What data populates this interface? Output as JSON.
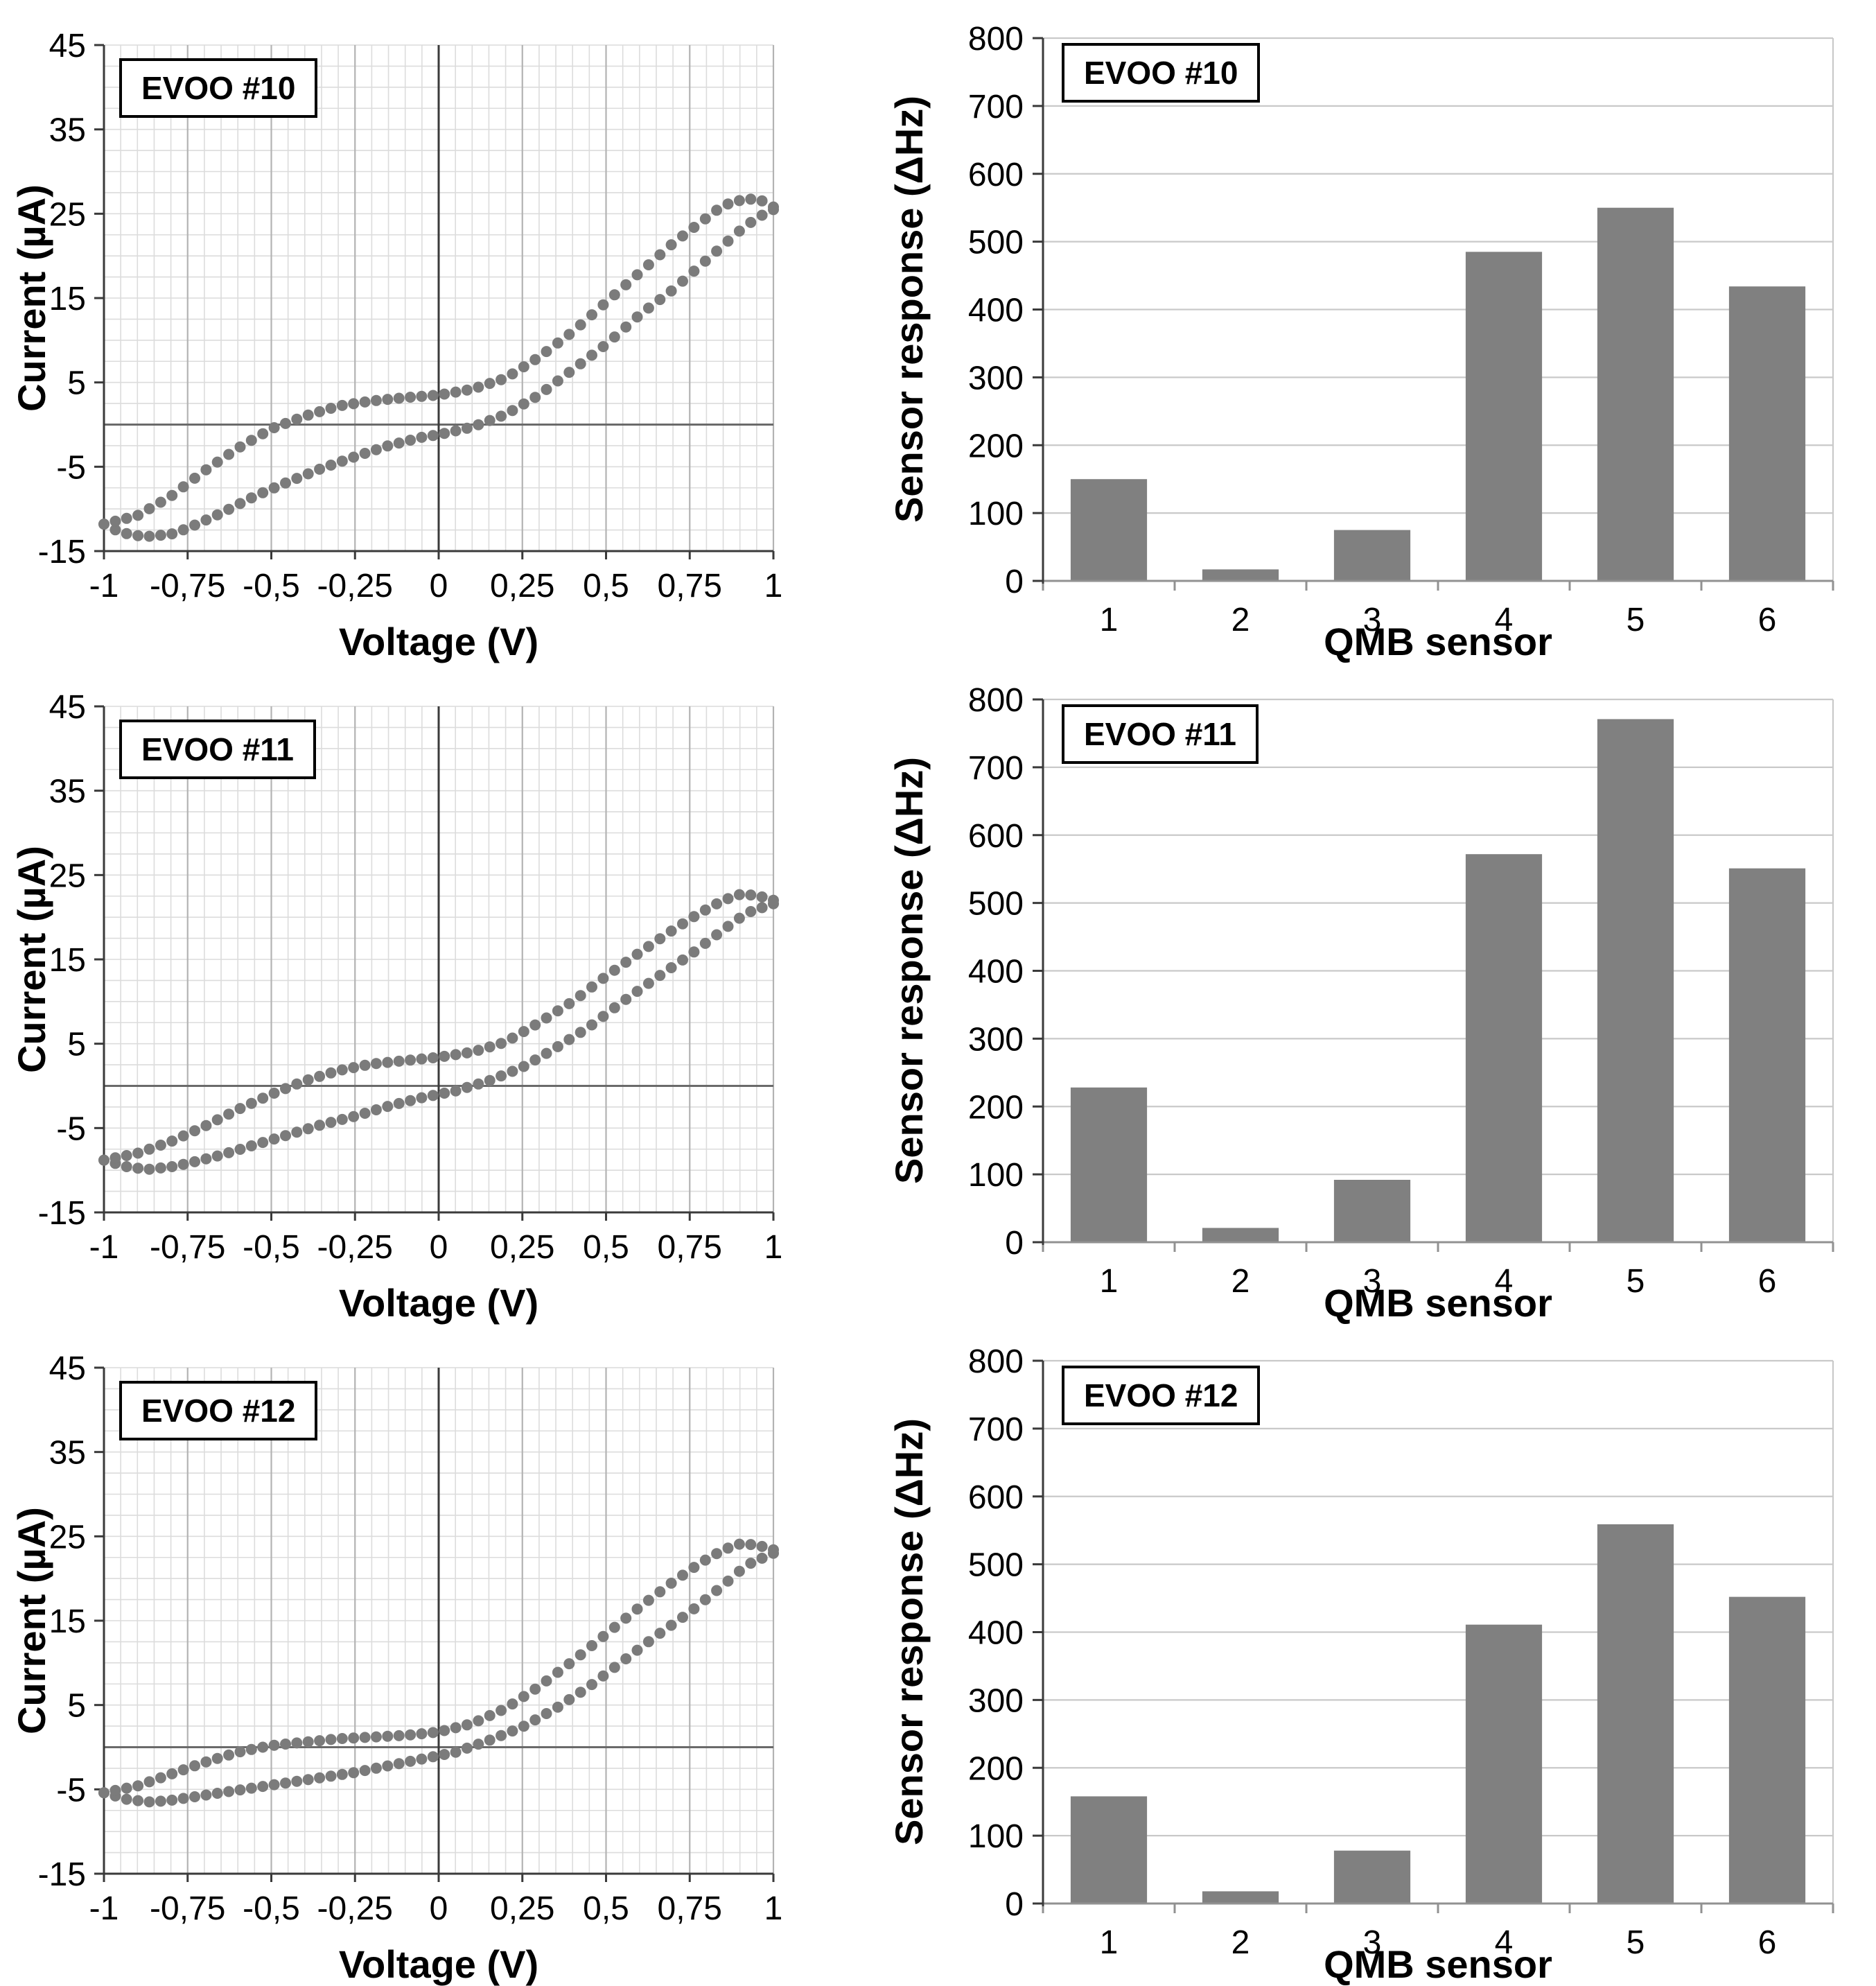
{
  "colors": {
    "series": "#7b7b7b",
    "bar_fill": "#808080",
    "grid_minor": "#dcdcdc",
    "grid_major": "#b3b3b3",
    "grid_bar": "#c9c9c9",
    "axis": "#3a3a3a",
    "zero_line": "#6a6a6a",
    "bar_baseline": "#919191",
    "text": "#000000"
  },
  "chart_data": [
    {
      "kind": "cv",
      "title": "EVOO #10",
      "xlabel": "Voltage (V)",
      "ylabel": "Current (µA)",
      "xlim": [
        -1,
        1
      ],
      "ylim": [
        -15,
        45
      ],
      "minor_x_step": 0.05,
      "minor_y_step": 2.5,
      "major_x_step": 0.25,
      "point_step": 0.034,
      "x_ticks": [
        -1,
        -0.75,
        -0.5,
        -0.25,
        0,
        0.25,
        0.5,
        0.75,
        1
      ],
      "x_tick_labels": [
        "-1",
        "-0,75",
        "-0,5",
        "-0,25",
        "0",
        "0,25",
        "0,5",
        "0,75",
        "1"
      ],
      "y_ticks": [
        45,
        35,
        25,
        15,
        5,
        -5,
        -15
      ],
      "y_tick_labels": [
        "45",
        "35",
        "25",
        "15",
        "5",
        "-5",
        "-15"
      ],
      "branches": {
        "forward": [
          [
            -1.0,
            -11.8
          ],
          [
            -0.95,
            -12.8
          ],
          [
            -0.88,
            -13.3
          ],
          [
            -0.8,
            -13.0
          ],
          [
            -0.75,
            -12.3
          ],
          [
            -0.65,
            -10.5
          ],
          [
            -0.55,
            -8.5
          ],
          [
            -0.45,
            -6.8
          ],
          [
            -0.35,
            -5.2
          ],
          [
            -0.25,
            -3.8
          ],
          [
            -0.15,
            -2.5
          ],
          [
            -0.05,
            -1.5
          ],
          [
            0.0,
            -1.2
          ],
          [
            0.1,
            -0.3
          ],
          [
            0.2,
            1.2
          ],
          [
            0.3,
            3.5
          ],
          [
            0.4,
            6.5
          ],
          [
            0.5,
            9.5
          ],
          [
            0.6,
            13.0
          ],
          [
            0.7,
            16.0
          ],
          [
            0.8,
            19.5
          ],
          [
            0.9,
            23.0
          ],
          [
            0.95,
            24.5
          ],
          [
            1.0,
            25.5
          ]
        ],
        "reverse": [
          [
            1.0,
            25.8
          ],
          [
            0.97,
            26.5
          ],
          [
            0.92,
            26.8
          ],
          [
            0.85,
            26.0
          ],
          [
            0.8,
            24.5
          ],
          [
            0.7,
            21.5
          ],
          [
            0.6,
            18.0
          ],
          [
            0.5,
            14.5
          ],
          [
            0.4,
            11.0
          ],
          [
            0.3,
            8.0
          ],
          [
            0.2,
            5.5
          ],
          [
            0.1,
            4.2
          ],
          [
            0.0,
            3.5
          ],
          [
            -0.1,
            3.2
          ],
          [
            -0.2,
            2.8
          ],
          [
            -0.3,
            2.2
          ],
          [
            -0.4,
            1.0
          ],
          [
            -0.5,
            -0.5
          ],
          [
            -0.6,
            -2.8
          ],
          [
            -0.7,
            -5.5
          ],
          [
            -0.8,
            -8.5
          ],
          [
            -0.9,
            -10.8
          ],
          [
            -1.0,
            -11.8
          ]
        ]
      }
    },
    {
      "kind": "bar",
      "title": "EVOO #10",
      "xlabel": "QMB sensor",
      "ylabel": "Sensor response (ΔHz)",
      "categories": [
        "1",
        "2",
        "3",
        "4",
        "5",
        "6"
      ],
      "values": [
        150,
        17,
        75,
        485,
        550,
        434
      ],
      "ylim": [
        0,
        800
      ],
      "y_ticks": [
        0,
        100,
        200,
        300,
        400,
        500,
        600,
        700,
        800
      ],
      "y_tick_labels": [
        "0",
        "100",
        "200",
        "300",
        "400",
        "500",
        "600",
        "700",
        "800"
      ]
    },
    {
      "kind": "cv",
      "title": "EVOO #11",
      "xlabel": "Voltage (V)",
      "ylabel": "Current (µA)",
      "xlim": [
        -1,
        1
      ],
      "ylim": [
        -15,
        45
      ],
      "minor_x_step": 0.05,
      "minor_y_step": 2.5,
      "major_x_step": 0.25,
      "point_step": 0.034,
      "x_ticks": [
        -1,
        -0.75,
        -0.5,
        -0.25,
        0,
        0.25,
        0.5,
        0.75,
        1
      ],
      "x_tick_labels": [
        "-1",
        "-0,75",
        "-0,5",
        "-0,25",
        "0",
        "0,25",
        "0,5",
        "0,75",
        "1"
      ],
      "y_ticks": [
        45,
        35,
        25,
        15,
        5,
        -5,
        -15
      ],
      "y_tick_labels": [
        "45",
        "35",
        "25",
        "15",
        "5",
        "-5",
        "-15"
      ],
      "branches": {
        "forward": [
          [
            -1.0,
            -8.8
          ],
          [
            -0.93,
            -9.6
          ],
          [
            -0.87,
            -9.9
          ],
          [
            -0.8,
            -9.6
          ],
          [
            -0.75,
            -9.2
          ],
          [
            -0.65,
            -8.2
          ],
          [
            -0.55,
            -7.0
          ],
          [
            -0.45,
            -5.8
          ],
          [
            -0.35,
            -4.6
          ],
          [
            -0.25,
            -3.6
          ],
          [
            -0.15,
            -2.4
          ],
          [
            -0.05,
            -1.4
          ],
          [
            0.05,
            -0.6
          ],
          [
            0.15,
            0.6
          ],
          [
            0.25,
            2.2
          ],
          [
            0.35,
            4.5
          ],
          [
            0.45,
            7.0
          ],
          [
            0.55,
            10.0
          ],
          [
            0.65,
            12.8
          ],
          [
            0.75,
            15.5
          ],
          [
            0.85,
            18.5
          ],
          [
            0.92,
            20.5
          ],
          [
            1.0,
            21.6
          ]
        ],
        "reverse": [
          [
            1.0,
            22.0
          ],
          [
            0.95,
            22.6
          ],
          [
            0.9,
            22.7
          ],
          [
            0.85,
            22.0
          ],
          [
            0.78,
            20.5
          ],
          [
            0.7,
            18.5
          ],
          [
            0.6,
            15.8
          ],
          [
            0.5,
            13.0
          ],
          [
            0.4,
            10.0
          ],
          [
            0.3,
            7.5
          ],
          [
            0.2,
            5.2
          ],
          [
            0.1,
            4.0
          ],
          [
            0.0,
            3.4
          ],
          [
            -0.1,
            3.0
          ],
          [
            -0.2,
            2.6
          ],
          [
            -0.3,
            1.8
          ],
          [
            -0.4,
            0.6
          ],
          [
            -0.5,
            -1.0
          ],
          [
            -0.6,
            -2.8
          ],
          [
            -0.7,
            -4.8
          ],
          [
            -0.8,
            -6.6
          ],
          [
            -0.9,
            -8.0
          ],
          [
            -1.0,
            -8.8
          ]
        ]
      }
    },
    {
      "kind": "bar",
      "title": "EVOO #11",
      "xlabel": "QMB sensor",
      "ylabel": "Sensor response (ΔHz)",
      "categories": [
        "1",
        "2",
        "3",
        "4",
        "5",
        "6"
      ],
      "values": [
        228,
        21,
        92,
        572,
        771,
        551
      ],
      "ylim": [
        0,
        800
      ],
      "y_ticks": [
        0,
        100,
        200,
        300,
        400,
        500,
        600,
        700,
        800
      ],
      "y_tick_labels": [
        "0",
        "100",
        "200",
        "300",
        "400",
        "500",
        "600",
        "700",
        "800"
      ]
    },
    {
      "kind": "cv",
      "title": "EVOO #12",
      "xlabel": "Voltage (V)",
      "ylabel": "Current (µA)",
      "xlim": [
        -1,
        1
      ],
      "ylim": [
        -15,
        45
      ],
      "minor_x_step": 0.05,
      "minor_y_step": 2.5,
      "major_x_step": 0.25,
      "point_step": 0.034,
      "x_ticks": [
        -1,
        -0.75,
        -0.5,
        -0.25,
        0,
        0.25,
        0.5,
        0.75,
        1
      ],
      "x_tick_labels": [
        "-1",
        "-0,75",
        "-0,5",
        "-0,25",
        "0",
        "0,25",
        "0,5",
        "0,75",
        "1"
      ],
      "y_ticks": [
        45,
        35,
        25,
        15,
        5,
        -5,
        -15
      ],
      "y_tick_labels": [
        "45",
        "35",
        "25",
        "15",
        "5",
        "-5",
        "-15"
      ],
      "branches": {
        "forward": [
          [
            -1.0,
            -5.4
          ],
          [
            -0.93,
            -6.2
          ],
          [
            -0.86,
            -6.5
          ],
          [
            -0.8,
            -6.3
          ],
          [
            -0.75,
            -6.0
          ],
          [
            -0.65,
            -5.4
          ],
          [
            -0.55,
            -4.8
          ],
          [
            -0.45,
            -4.2
          ],
          [
            -0.35,
            -3.6
          ],
          [
            -0.25,
            -3.0
          ],
          [
            -0.15,
            -2.2
          ],
          [
            -0.05,
            -1.4
          ],
          [
            0.05,
            -0.6
          ],
          [
            0.15,
            0.8
          ],
          [
            0.25,
            2.4
          ],
          [
            0.35,
            4.6
          ],
          [
            0.45,
            7.2
          ],
          [
            0.55,
            10.2
          ],
          [
            0.65,
            13.2
          ],
          [
            0.75,
            16.0
          ],
          [
            0.85,
            19.2
          ],
          [
            0.92,
            21.6
          ],
          [
            1.0,
            23.0
          ]
        ],
        "reverse": [
          [
            1.0,
            23.4
          ],
          [
            0.95,
            24.0
          ],
          [
            0.9,
            24.1
          ],
          [
            0.85,
            23.4
          ],
          [
            0.78,
            21.8
          ],
          [
            0.7,
            19.6
          ],
          [
            0.6,
            16.6
          ],
          [
            0.5,
            13.4
          ],
          [
            0.4,
            10.2
          ],
          [
            0.3,
            7.2
          ],
          [
            0.2,
            4.6
          ],
          [
            0.1,
            2.8
          ],
          [
            0.0,
            1.8
          ],
          [
            -0.1,
            1.4
          ],
          [
            -0.2,
            1.2
          ],
          [
            -0.3,
            1.0
          ],
          [
            -0.4,
            0.6
          ],
          [
            -0.5,
            0.2
          ],
          [
            -0.6,
            -0.6
          ],
          [
            -0.7,
            -1.8
          ],
          [
            -0.8,
            -3.2
          ],
          [
            -0.9,
            -4.6
          ],
          [
            -1.0,
            -5.4
          ]
        ]
      }
    },
    {
      "kind": "bar",
      "title": "EVOO #12",
      "xlabel": "QMB sensor",
      "ylabel": "Sensor response (ΔHz)",
      "categories": [
        "1",
        "2",
        "3",
        "4",
        "5",
        "6"
      ],
      "values": [
        158,
        18,
        78,
        411,
        559,
        452
      ],
      "ylim": [
        0,
        800
      ],
      "y_ticks": [
        0,
        100,
        200,
        300,
        400,
        500,
        600,
        700,
        800
      ],
      "y_tick_labels": [
        "0",
        "100",
        "200",
        "300",
        "400",
        "500",
        "600",
        "700",
        "800"
      ]
    }
  ]
}
